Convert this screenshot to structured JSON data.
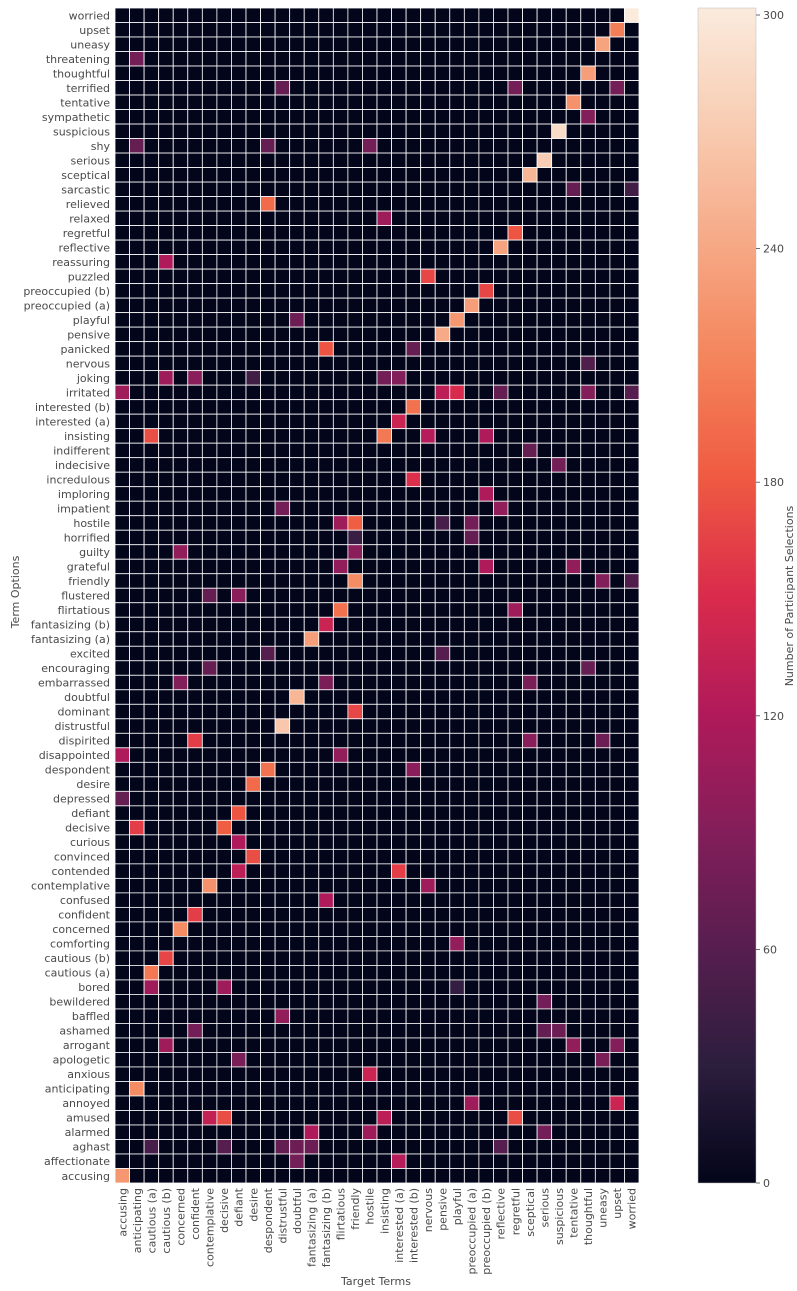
{
  "chart_data": {
    "type": "heatmap",
    "title": "",
    "xlabel": "Target Terms",
    "ylabel": "Term Options",
    "colorbar_label": "Number of Participant Selections",
    "colorbar_ticks": [
      0,
      60,
      120,
      180,
      240,
      300
    ],
    "value_range": [
      0,
      305
    ],
    "grid": true,
    "x_categories": [
      "accusing",
      "anticipating",
      "cautious (a)",
      "cautious (b)",
      "concerned",
      "confident",
      "contemplative",
      "decisive",
      "defiant",
      "desire",
      "despondent",
      "distrustful",
      "doubtful",
      "fantasizing (a)",
      "fantasizing (b)",
      "flirtatious",
      "friendly",
      "hostile",
      "insisting",
      "interested (a)",
      "interested (b)",
      "nervous",
      "pensive",
      "playful",
      "preoccupied (a)",
      "preoccupied (b)",
      "reflective",
      "regretful",
      "sceptical",
      "serious",
      "suspicious",
      "tentative",
      "thoughtful",
      "uneasy",
      "upset",
      "worried"
    ],
    "y_categories": [
      "worried",
      "upset",
      "uneasy",
      "threatening",
      "thoughtful",
      "terrified",
      "tentative",
      "sympathetic",
      "suspicious",
      "shy",
      "serious",
      "sceptical",
      "sarcastic",
      "relieved",
      "relaxed",
      "regretful",
      "reflective",
      "reassuring",
      "puzzled",
      "preoccupied (b)",
      "preoccupied (a)",
      "playful",
      "pensive",
      "panicked",
      "nervous",
      "joking",
      "irritated",
      "interested (b)",
      "interested (a)",
      "insisting",
      "indifferent",
      "indecisive",
      "incredulous",
      "imploring",
      "impatient",
      "hostile",
      "horrified",
      "guilty",
      "grateful",
      "friendly",
      "flustered",
      "flirtatious",
      "fantasizing (b)",
      "fantasizing (a)",
      "excited",
      "encouraging",
      "embarrassed",
      "doubtful",
      "dominant",
      "distrustful",
      "dispirited",
      "disappointed",
      "despondent",
      "desire",
      "depressed",
      "defiant",
      "decisive",
      "curious",
      "convinced",
      "contended",
      "contemplative",
      "confused",
      "confident",
      "concerned",
      "comforting",
      "cautious (b)",
      "cautious (a)",
      "bored",
      "bewildered",
      "baffled",
      "ashamed",
      "arrogant",
      "apologetic",
      "anxious",
      "anticipating",
      "annoyed",
      "amused",
      "alarmed",
      "aghast",
      "affectionate",
      "accusing"
    ],
    "cells": [
      [
        "worried",
        "worried",
        305
      ],
      [
        "upset",
        "upset",
        210
      ],
      [
        "uneasy",
        "uneasy",
        240
      ],
      [
        "threatening",
        "anticipating",
        80
      ],
      [
        "thoughtful",
        "thoughtful",
        235
      ],
      [
        "terrified",
        "distrustful",
        70
      ],
      [
        "terrified",
        "regretful",
        80
      ],
      [
        "terrified",
        "upset",
        80
      ],
      [
        "tentative",
        "tentative",
        225
      ],
      [
        "sympathetic",
        "thoughtful",
        90
      ],
      [
        "suspicious",
        "suspicious",
        290
      ],
      [
        "shy",
        "anticipating",
        70
      ],
      [
        "shy",
        "despondent",
        70
      ],
      [
        "shy",
        "hostile",
        80
      ],
      [
        "serious",
        "serious",
        275
      ],
      [
        "sceptical",
        "sceptical",
        255
      ],
      [
        "sarcastic",
        "tentative",
        70
      ],
      [
        "sarcastic",
        "worried",
        45
      ],
      [
        "relieved",
        "despondent",
        195
      ],
      [
        "relaxed",
        "insisting",
        110
      ],
      [
        "regretful",
        "regretful",
        180
      ],
      [
        "reflective",
        "reflective",
        240
      ],
      [
        "reassuring",
        "cautious (b)",
        120
      ],
      [
        "puzzled",
        "nervous",
        170
      ],
      [
        "preoccupied (b)",
        "preoccupied (b)",
        170
      ],
      [
        "preoccupied (a)",
        "preoccupied (a)",
        235
      ],
      [
        "playful",
        "doubtful",
        75
      ],
      [
        "playful",
        "playful",
        230
      ],
      [
        "pensive",
        "pensive",
        245
      ],
      [
        "panicked",
        "fantasizing (b)",
        180
      ],
      [
        "panicked",
        "interested (b)",
        70
      ],
      [
        "nervous",
        "thoughtful",
        55
      ],
      [
        "joking",
        "cautious (b)",
        110
      ],
      [
        "joking",
        "confident",
        95
      ],
      [
        "joking",
        "desire",
        45
      ],
      [
        "joking",
        "insisting",
        80
      ],
      [
        "joking",
        "interested (a)",
        90
      ],
      [
        "irritated",
        "accusing",
        110
      ],
      [
        "irritated",
        "pensive",
        130
      ],
      [
        "irritated",
        "playful",
        150
      ],
      [
        "irritated",
        "reflective",
        70
      ],
      [
        "irritated",
        "thoughtful",
        90
      ],
      [
        "irritated",
        "worried",
        60
      ],
      [
        "interested (b)",
        "interested (b)",
        200
      ],
      [
        "interested (a)",
        "interested (a)",
        140
      ],
      [
        "insisting",
        "cautious (a)",
        175
      ],
      [
        "insisting",
        "insisting",
        205
      ],
      [
        "insisting",
        "nervous",
        125
      ],
      [
        "insisting",
        "preoccupied (b)",
        120
      ],
      [
        "indifferent",
        "sceptical",
        70
      ],
      [
        "indecisive",
        "suspicious",
        80
      ],
      [
        "incredulous",
        "interested (b)",
        155
      ],
      [
        "imploring",
        "preoccupied (b)",
        120
      ],
      [
        "impatient",
        "distrustful",
        80
      ],
      [
        "impatient",
        "reflective",
        100
      ],
      [
        "hostile",
        "flirtatious",
        110
      ],
      [
        "hostile",
        "friendly",
        185
      ],
      [
        "hostile",
        "pensive",
        50
      ],
      [
        "hostile",
        "preoccupied (a)",
        80
      ],
      [
        "horrified",
        "friendly",
        40
      ],
      [
        "horrified",
        "preoccupied (a)",
        70
      ],
      [
        "guilty",
        "concerned",
        100
      ],
      [
        "guilty",
        "friendly",
        95
      ],
      [
        "grateful",
        "flirtatious",
        100
      ],
      [
        "grateful",
        "preoccupied (b)",
        120
      ],
      [
        "grateful",
        "tentative",
        100
      ],
      [
        "friendly",
        "friendly",
        220
      ],
      [
        "friendly",
        "uneasy",
        90
      ],
      [
        "friendly",
        "worried",
        55
      ],
      [
        "flustered",
        "contemplative",
        70
      ],
      [
        "flustered",
        "defiant",
        95
      ],
      [
        "flirtatious",
        "flirtatious",
        200
      ],
      [
        "flirtatious",
        "regretful",
        110
      ],
      [
        "fantasizing (b)",
        "fantasizing (b)",
        140
      ],
      [
        "fantasizing (a)",
        "fantasizing (a)",
        235
      ],
      [
        "excited",
        "despondent",
        60
      ],
      [
        "excited",
        "pensive",
        60
      ],
      [
        "encouraging",
        "contemplative",
        70
      ],
      [
        "encouraging",
        "thoughtful",
        70
      ],
      [
        "embarrassed",
        "concerned",
        90
      ],
      [
        "embarrassed",
        "fantasizing (b)",
        85
      ],
      [
        "embarrassed",
        "sceptical",
        85
      ],
      [
        "doubtful",
        "doubtful",
        255
      ],
      [
        "dominant",
        "friendly",
        170
      ],
      [
        "distrustful",
        "distrustful",
        270
      ],
      [
        "dispirited",
        "confident",
        165
      ],
      [
        "dispirited",
        "sceptical",
        95
      ],
      [
        "dispirited",
        "uneasy",
        75
      ],
      [
        "disappointed",
        "accusing",
        120
      ],
      [
        "disappointed",
        "flirtatious",
        100
      ],
      [
        "despondent",
        "despondent",
        200
      ],
      [
        "despondent",
        "interested (b)",
        95
      ],
      [
        "desire",
        "desire",
        195
      ],
      [
        "depressed",
        "accusing",
        70
      ],
      [
        "defiant",
        "defiant",
        180
      ],
      [
        "decisive",
        "anticipating",
        165
      ],
      [
        "decisive",
        "decisive",
        185
      ],
      [
        "curious",
        "defiant",
        120
      ],
      [
        "convinced",
        "desire",
        175
      ],
      [
        "contended",
        "defiant",
        130
      ],
      [
        "contended",
        "interested (a)",
        165
      ],
      [
        "contemplative",
        "contemplative",
        225
      ],
      [
        "contemplative",
        "nervous",
        110
      ],
      [
        "confused",
        "fantasizing (b)",
        120
      ],
      [
        "confident",
        "confident",
        165
      ],
      [
        "concerned",
        "concerned",
        220
      ],
      [
        "comforting",
        "playful",
        100
      ],
      [
        "cautious (b)",
        "cautious (b)",
        170
      ],
      [
        "cautious (a)",
        "cautious (a)",
        205
      ],
      [
        "bored",
        "cautious (a)",
        110
      ],
      [
        "bored",
        "decisive",
        110
      ],
      [
        "bored",
        "playful",
        35
      ],
      [
        "bewildered",
        "serious",
        80
      ],
      [
        "baffled",
        "distrustful",
        100
      ],
      [
        "ashamed",
        "confident",
        80
      ],
      [
        "ashamed",
        "serious",
        70
      ],
      [
        "ashamed",
        "suspicious",
        75
      ],
      [
        "arrogant",
        "cautious (b)",
        110
      ],
      [
        "arrogant",
        "tentative",
        100
      ],
      [
        "arrogant",
        "upset",
        90
      ],
      [
        "apologetic",
        "defiant",
        85
      ],
      [
        "apologetic",
        "uneasy",
        85
      ],
      [
        "anxious",
        "hostile",
        140
      ],
      [
        "anticipating",
        "anticipating",
        220
      ],
      [
        "annoyed",
        "preoccupied (a)",
        110
      ],
      [
        "annoyed",
        "upset",
        140
      ],
      [
        "amused",
        "contemplative",
        135
      ],
      [
        "amused",
        "decisive",
        175
      ],
      [
        "amused",
        "insisting",
        130
      ],
      [
        "amused",
        "regretful",
        175
      ],
      [
        "alarmed",
        "fantasizing (a)",
        120
      ],
      [
        "alarmed",
        "hostile",
        110
      ],
      [
        "alarmed",
        "serious",
        80
      ],
      [
        "aghast",
        "cautious (a)",
        50
      ],
      [
        "aghast",
        "decisive",
        60
      ],
      [
        "aghast",
        "distrustful",
        70
      ],
      [
        "aghast",
        "doubtful",
        75
      ],
      [
        "aghast",
        "fantasizing (a)",
        75
      ],
      [
        "aghast",
        "reflective",
        60
      ],
      [
        "affectionate",
        "doubtful",
        80
      ],
      [
        "affectionate",
        "interested (a)",
        125
      ],
      [
        "accusing",
        "accusing",
        230
      ]
    ]
  }
}
